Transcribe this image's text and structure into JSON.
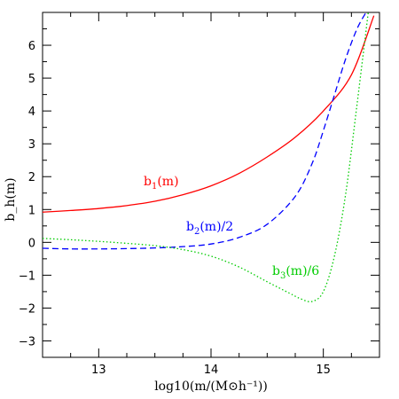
{
  "chart_data": {
    "type": "line",
    "xlabel": "log10(m/(M⊙h⁻¹))",
    "ylabel": "b_h(m)",
    "xlim": [
      12.5,
      15.5
    ],
    "ylim": [
      -3.5,
      7.0
    ],
    "xticks": [
      13,
      14,
      15
    ],
    "yticks": [
      -3,
      -2,
      -1,
      0,
      1,
      2,
      3,
      4,
      5,
      6
    ],
    "grid": false,
    "series": [
      {
        "name": "b1(m)",
        "label_parts": {
          "base": "b",
          "sub": "1",
          "suffix": "(m)"
        },
        "color": "#ff0000",
        "dash": "solid",
        "x": [
          12.5,
          12.75,
          13.0,
          13.25,
          13.5,
          13.75,
          14.0,
          14.25,
          14.5,
          14.75,
          15.0,
          15.25,
          15.45
        ],
        "y": [
          0.92,
          0.97,
          1.03,
          1.12,
          1.25,
          1.45,
          1.72,
          2.1,
          2.6,
          3.2,
          4.0,
          5.1,
          6.9
        ]
      },
      {
        "name": "b2(m)/2",
        "label_parts": {
          "base": "b",
          "sub": "2",
          "suffix": "(m)/2"
        },
        "color": "#0000ff",
        "dash": "dashed",
        "x": [
          12.5,
          12.75,
          13.0,
          13.25,
          13.5,
          13.75,
          14.0,
          14.25,
          14.5,
          14.75,
          14.9,
          15.0,
          15.1,
          15.2,
          15.3,
          15.38
        ],
        "y": [
          -0.18,
          -0.2,
          -0.2,
          -0.19,
          -0.17,
          -0.13,
          -0.05,
          0.15,
          0.55,
          1.4,
          2.4,
          3.4,
          4.5,
          5.6,
          6.5,
          7.0
        ]
      },
      {
        "name": "b3(m)/6",
        "label_parts": {
          "base": "b",
          "sub": "3",
          "suffix": "(m)/6"
        },
        "color": "#00cc00",
        "dash": "dotted",
        "x": [
          12.5,
          12.75,
          13.0,
          13.25,
          13.5,
          13.75,
          14.0,
          14.25,
          14.5,
          14.7,
          14.8,
          14.9,
          15.0,
          15.1,
          15.2,
          15.3,
          15.4
        ],
        "y": [
          0.12,
          0.08,
          0.03,
          -0.03,
          -0.1,
          -0.22,
          -0.42,
          -0.75,
          -1.2,
          -1.55,
          -1.72,
          -1.8,
          -1.5,
          -0.4,
          1.5,
          4.2,
          7.0
        ]
      }
    ]
  }
}
